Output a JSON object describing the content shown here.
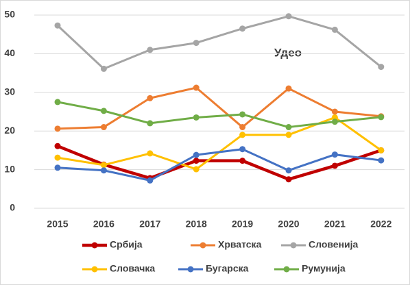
{
  "chart_data": {
    "type": "line",
    "title": "Удео",
    "categories": [
      "2015",
      "2016",
      "2017",
      "2018",
      "2019",
      "2020",
      "2021",
      "2022"
    ],
    "series": [
      {
        "name": "Србија",
        "color": "#c00000",
        "values": [
          16.1,
          11.3,
          7.8,
          12.3,
          12.3,
          7.5,
          11,
          15
        ]
      },
      {
        "name": "Хрватска",
        "color": "#ed7d31",
        "values": [
          20.6,
          21,
          28.5,
          31.2,
          21,
          31,
          25,
          23.8
        ]
      },
      {
        "name": "Словенија",
        "color": "#a5a5a5",
        "values": [
          47.3,
          36.1,
          41,
          42.8,
          46.5,
          49.7,
          46.2,
          36.6
        ]
      },
      {
        "name": "Словачка",
        "color": "#ffc000",
        "values": [
          13.1,
          11.2,
          14.2,
          10.1,
          19,
          19,
          23.5,
          15
        ]
      },
      {
        "name": "Бугарска",
        "color": "#4472c4",
        "values": [
          10.5,
          9.8,
          7.2,
          13.8,
          15.3,
          9.8,
          13.9,
          12.4
        ]
      },
      {
        "name": "Румунија",
        "color": "#70ad47",
        "values": [
          27.5,
          25.2,
          22,
          23.5,
          24.3,
          21,
          22.4,
          23.6
        ]
      }
    ],
    "ylim": [
      0,
      50
    ],
    "yticks": [
      0,
      10,
      20,
      30,
      40,
      50
    ],
    "grid": true
  }
}
